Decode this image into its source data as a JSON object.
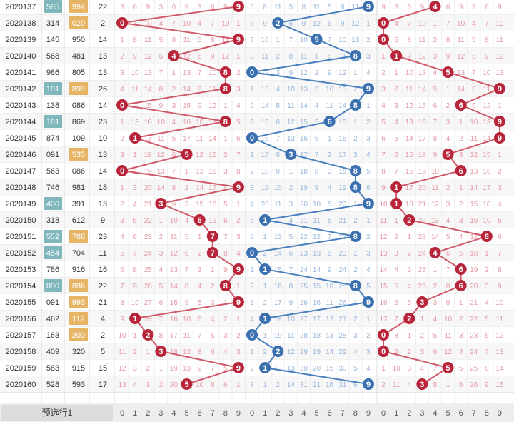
{
  "chart_data": {
    "type": "table",
    "footer_label": "预选行1",
    "digit_headers": [
      "0",
      "1",
      "2",
      "3",
      "4",
      "5",
      "6",
      "7",
      "8",
      "9"
    ],
    "colors": {
      "red": "#b8243a",
      "blue": "#3a6fb0",
      "badge_teal": "#7fb7bd",
      "badge_orange": "#e5b464",
      "line_red": "#d05a6a",
      "line_blue": "#4a80bf",
      "miss_red": "#e59aa4",
      "miss_blue": "#98b6da"
    },
    "rows": [
      {
        "issue": "2020137",
        "test": "585",
        "test_badge": true,
        "draw": "994",
        "draw_badge": true,
        "sum": "22",
        "a": 9,
        "b": 9,
        "c": 4
      },
      {
        "issue": "2020138",
        "test": "314",
        "test_badge": false,
        "draw": "020",
        "draw_badge": true,
        "sum": "2",
        "a": 0,
        "b": 2,
        "c": 0
      },
      {
        "issue": "2020139",
        "test": "145",
        "test_badge": false,
        "draw": "950",
        "draw_badge": false,
        "sum": "14",
        "a": 9,
        "b": 5,
        "c": 0
      },
      {
        "issue": "2020140",
        "test": "568",
        "test_badge": false,
        "draw": "481",
        "draw_badge": false,
        "sum": "13",
        "a": 4,
        "b": 8,
        "c": 1
      },
      {
        "issue": "2020141",
        "test": "986",
        "test_badge": false,
        "draw": "805",
        "draw_badge": false,
        "sum": "13",
        "a": 8,
        "b": 0,
        "c": 5
      },
      {
        "issue": "2020142",
        "test": "101",
        "test_badge": true,
        "draw": "899",
        "draw_badge": true,
        "sum": "26",
        "a": 8,
        "b": 9,
        "c": 9
      },
      {
        "issue": "2020143",
        "test": "138",
        "test_badge": false,
        "draw": "086",
        "draw_badge": false,
        "sum": "14",
        "a": 0,
        "b": 8,
        "c": 6
      },
      {
        "issue": "2020144",
        "test": "181",
        "test_badge": true,
        "draw": "869",
        "draw_badge": false,
        "sum": "23",
        "a": 8,
        "b": 6,
        "c": 9
      },
      {
        "issue": "2020145",
        "test": "874",
        "test_badge": false,
        "draw": "109",
        "draw_badge": false,
        "sum": "10",
        "a": 1,
        "b": 0,
        "c": 9
      },
      {
        "issue": "2020146",
        "test": "091",
        "test_badge": false,
        "draw": "535",
        "draw_badge": true,
        "sum": "13",
        "a": 5,
        "b": 3,
        "c": 5
      },
      {
        "issue": "2020147",
        "test": "563",
        "test_badge": false,
        "draw": "086",
        "draw_badge": false,
        "sum": "14",
        "a": 0,
        "b": 8,
        "c": 6
      },
      {
        "issue": "2020148",
        "test": "746",
        "test_badge": false,
        "draw": "981",
        "draw_badge": false,
        "sum": "18",
        "a": 9,
        "b": 8,
        "c": 1
      },
      {
        "issue": "2020149",
        "test": "400",
        "test_badge": true,
        "draw": "391",
        "draw_badge": false,
        "sum": "13",
        "a": 3,
        "b": 9,
        "c": 1
      },
      {
        "issue": "2020150",
        "test": "318",
        "test_badge": false,
        "draw": "612",
        "draw_badge": false,
        "sum": "9",
        "a": 6,
        "b": 1,
        "c": 2
      },
      {
        "issue": "2020151",
        "test": "552",
        "test_badge": true,
        "draw": "788",
        "draw_badge": true,
        "sum": "23",
        "a": 7,
        "b": 8,
        "c": 8
      },
      {
        "issue": "2020152",
        "test": "454",
        "test_badge": true,
        "draw": "704",
        "draw_badge": false,
        "sum": "11",
        "a": 7,
        "b": 0,
        "c": 4
      },
      {
        "issue": "2020153",
        "test": "786",
        "test_badge": false,
        "draw": "916",
        "draw_badge": false,
        "sum": "16",
        "a": 9,
        "b": 1,
        "c": 6
      },
      {
        "issue": "2020154",
        "test": "090",
        "test_badge": true,
        "draw": "886",
        "draw_badge": true,
        "sum": "22",
        "a": 8,
        "b": 8,
        "c": 6
      },
      {
        "issue": "2020155",
        "test": "091",
        "test_badge": false,
        "draw": "993",
        "draw_badge": true,
        "sum": "21",
        "a": 9,
        "b": 9,
        "c": 3
      },
      {
        "issue": "2020156",
        "test": "462",
        "test_badge": false,
        "draw": "112",
        "draw_badge": true,
        "sum": "4",
        "a": 1,
        "b": 1,
        "c": 2
      },
      {
        "issue": "2020157",
        "test": "163",
        "test_badge": false,
        "draw": "200",
        "draw_badge": true,
        "sum": "2",
        "a": 2,
        "b": 0,
        "c": 0
      },
      {
        "issue": "2020158",
        "test": "409",
        "test_badge": false,
        "draw": "320",
        "draw_badge": false,
        "sum": "5",
        "a": 3,
        "b": 2,
        "c": 0
      },
      {
        "issue": "2020159",
        "test": "583",
        "test_badge": false,
        "draw": "915",
        "draw_badge": false,
        "sum": "15",
        "a": 9,
        "b": 1,
        "c": 5
      },
      {
        "issue": "2020160",
        "test": "528",
        "test_badge": false,
        "draw": "593",
        "draw_badge": false,
        "sum": "17",
        "a": 5,
        "b": 9,
        "c": 3
      }
    ]
  }
}
